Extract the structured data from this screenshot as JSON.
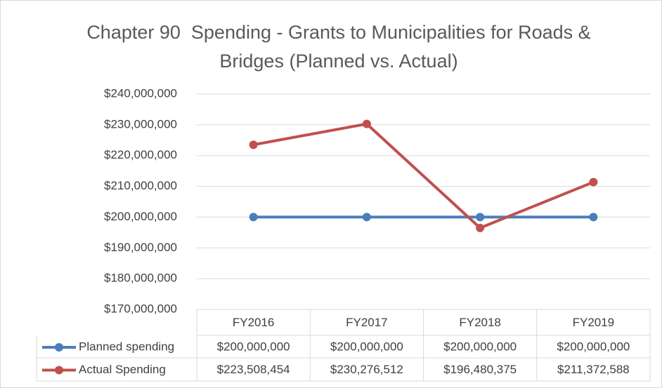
{
  "chart_data": {
    "type": "line",
    "title": "Chapter 90  Spending - Grants to Municipalities for Roads & Bridges (Planned vs. Actual)",
    "categories": [
      "FY2016",
      "FY2017",
      "FY2018",
      "FY2019"
    ],
    "series": [
      {
        "name": "Planned spending",
        "color": "#4a7ebb",
        "values": [
          200000000,
          200000000,
          200000000,
          200000000
        ],
        "value_labels": [
          "$200,000,000",
          "$200,000,000",
          "$200,000,000",
          "$200,000,000"
        ]
      },
      {
        "name": "Actual Spending",
        "color": "#c0504d",
        "values": [
          223508454,
          230276512,
          196480375,
          211372588
        ],
        "value_labels": [
          "$223,508,454",
          "$230,276,512",
          "$196,480,375",
          "$211,372,588"
        ]
      }
    ],
    "ylim": [
      170000000,
      240000000
    ],
    "yticks": [
      {
        "value": 170000000,
        "label": "$170,000,000"
      },
      {
        "value": 180000000,
        "label": "$180,000,000"
      },
      {
        "value": 190000000,
        "label": "$190,000,000"
      },
      {
        "value": 200000000,
        "label": "$200,000,000"
      },
      {
        "value": 210000000,
        "label": "$210,000,000"
      },
      {
        "value": 220000000,
        "label": "$220,000,000"
      },
      {
        "value": 230000000,
        "label": "$230,000,000"
      },
      {
        "value": 240000000,
        "label": "$240,000,000"
      }
    ],
    "grid": true
  }
}
